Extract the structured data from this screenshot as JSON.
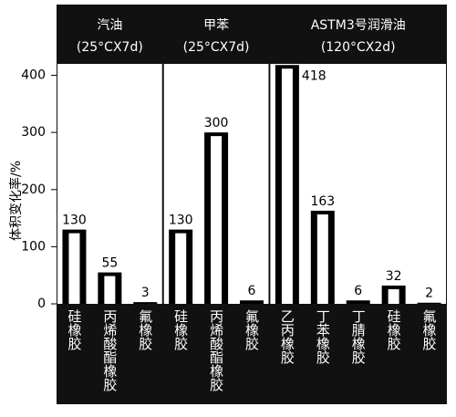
{
  "chart_data": {
    "type": "bar",
    "ylabel": "体积变化率/%",
    "ylim": [
      0,
      420
    ],
    "yticks": [
      0,
      100,
      200,
      300,
      400
    ],
    "color": "#000000",
    "panels": [
      {
        "title": "汽油",
        "subtitle": "(25°CX7d)",
        "categories": [
          "硅橡胶",
          "丙烯酸酯橡胶",
          "氟橡胶"
        ],
        "values": [
          130,
          55,
          3
        ]
      },
      {
        "title": "甲苯",
        "subtitle": "(25°CX7d)",
        "categories": [
          "硅橡胶",
          "丙烯酸酯橡胶",
          "氟橡胶"
        ],
        "values": [
          130,
          300,
          6
        ]
      },
      {
        "title": "ASTM3号润滑油",
        "subtitle": "(120°CX2d)",
        "categories": [
          "乙丙橡胶",
          "丁苯橡胶",
          "丁腈橡胶",
          "硅橡胶",
          "氟橡胶"
        ],
        "values": [
          418,
          163,
          6,
          32,
          2
        ]
      }
    ]
  }
}
